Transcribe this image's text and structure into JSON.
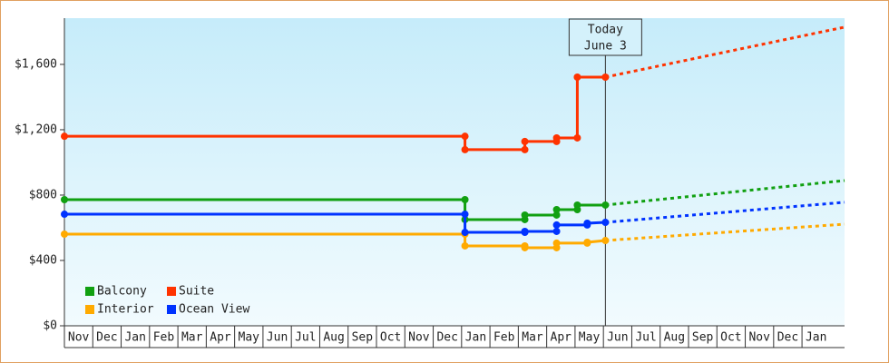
{
  "chart_data": {
    "type": "step-line",
    "categories": [
      "Nov",
      "Dec",
      "Jan",
      "Feb",
      "Mar",
      "Apr",
      "May",
      "Jun",
      "Jul",
      "Aug",
      "Sep",
      "Oct",
      "Nov",
      "Dec",
      "Jan",
      "Feb",
      "Mar",
      "Apr",
      "May",
      "Jun",
      "Jul",
      "Aug",
      "Sep",
      "Oct",
      "Nov",
      "Dec",
      "Jan"
    ],
    "xlim": [
      0,
      27.5
    ],
    "ylim": [
      0,
      1883
    ],
    "yticks": [
      {
        "value": 0,
        "label": "$0"
      },
      {
        "value": 400,
        "label": "$400"
      },
      {
        "value": 800,
        "label": "$800"
      },
      {
        "value": 1200,
        "label": "$1,200"
      },
      {
        "value": 1600,
        "label": "$1,600"
      }
    ],
    "legend": "bottom-left",
    "series": [
      {
        "name": "Balcony",
        "color": "#11a011",
        "x": [
          0,
          14.12,
          14.12,
          16.23,
          16.23,
          17.35,
          17.35,
          18.08,
          18.08,
          19.07
        ],
        "values": [
          772,
          772,
          650,
          650,
          678,
          678,
          711,
          711,
          739,
          739
        ],
        "projection": {
          "x": [
            19.07,
            27.5
          ],
          "values": [
            739,
            889
          ]
        }
      },
      {
        "name": "Suite",
        "color": "#ff3300",
        "x": [
          0,
          14.12,
          14.12,
          16.23,
          16.23,
          17.35,
          17.35,
          18.08,
          18.08,
          19.07
        ],
        "values": [
          1160,
          1160,
          1078,
          1078,
          1128,
          1128,
          1150,
          1150,
          1522,
          1522
        ],
        "projection": {
          "x": [
            19.07,
            27.5
          ],
          "values": [
            1522,
            1828
          ]
        }
      },
      {
        "name": "Interior",
        "color": "#ffaa00",
        "x": [
          0,
          14.12,
          14.12,
          16.23,
          16.23,
          17.35,
          17.35,
          18.43,
          18.43,
          19.07
        ],
        "values": [
          561,
          561,
          489,
          489,
          478,
          478,
          506,
          506,
          511,
          522
        ],
        "projection": {
          "x": [
            19.07,
            27.5
          ],
          "values": [
            522,
            622
          ]
        }
      },
      {
        "name": "Ocean View",
        "color": "#0033ff",
        "x": [
          0,
          14.12,
          14.12,
          16.23,
          16.23,
          17.35,
          17.35,
          18.43,
          18.43,
          19.07
        ],
        "values": [
          683,
          683,
          572,
          572,
          578,
          578,
          617,
          617,
          628,
          633
        ],
        "projection": {
          "x": [
            19.07,
            27.5
          ],
          "values": [
            633,
            756
          ]
        }
      }
    ],
    "annotations": [
      {
        "x": 19.07,
        "lines": [
          "Today",
          "June 3"
        ]
      }
    ]
  }
}
